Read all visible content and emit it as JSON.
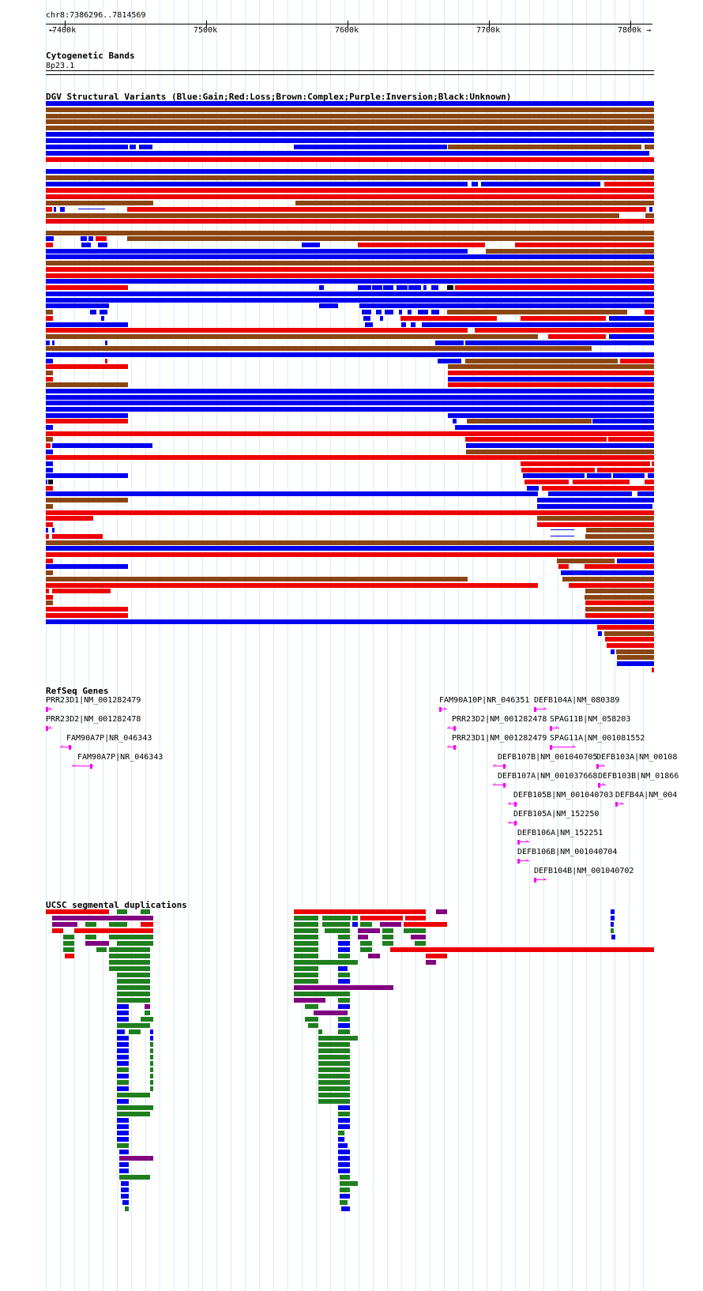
{
  "locus": "chr8:7386296..7814569",
  "ruler": {
    "ticks": [
      "7400k",
      "7500k",
      "7600k",
      "7700k",
      "7800k"
    ]
  },
  "cytoband": {
    "title": "Cytogenetic Bands",
    "band": "8p23.1"
  },
  "dgv": {
    "title": "DGV Structural Variants (Blue:Gain;Red:Loss;Brown:Complex;Purple:Inversion;Black:Unknown)",
    "colors": {
      "gain": "#0000ee",
      "loss": "#ee0000",
      "complex": "#8b4513",
      "inversion": "#800080",
      "unknown": "#000000"
    }
  },
  "refseq": {
    "title": "RefSeq Genes",
    "genes": [
      {
        "label": "PRR23D1|NM_001282479",
        "strand": "+"
      },
      {
        "label": "PRR23D2|NM_001282478",
        "strand": "+"
      },
      {
        "label": "FAM90A7P|NR_046343",
        "strand": "-"
      },
      {
        "label": "FAM90A7P|NR_046343",
        "strand": "-"
      },
      {
        "label": "FAM90A10P|NR_046351",
        "strand": "+"
      },
      {
        "label": "DEFB104A|NM_080389",
        "strand": "+"
      },
      {
        "label": "PRR23D2|NM_001282478",
        "strand": "-"
      },
      {
        "label": "SPAG11B|NM_058203",
        "strand": "+"
      },
      {
        "label": "PRR23D1|NM_001282479",
        "strand": "-"
      },
      {
        "label": "SPAG11A|NM_001081552",
        "strand": "+"
      },
      {
        "label": "DEFB107B|NM_001040705",
        "strand": "-"
      },
      {
        "label": "DEFB103A|NM_00108",
        "strand": "+"
      },
      {
        "label": "DEFB107A|NM_001037668",
        "strand": "-"
      },
      {
        "label": "DEFB103B|NM_01866",
        "strand": "+"
      },
      {
        "label": "DEFB105B|NM_001040703",
        "strand": "-"
      },
      {
        "label": "DEFB4A|NM_004",
        "strand": "+"
      },
      {
        "label": "DEFB105A|NM_152250",
        "strand": "-"
      },
      {
        "label": "DEFB106A|NM_152251",
        "strand": "+"
      },
      {
        "label": "DEFB106B|NM_001040704",
        "strand": "+"
      },
      {
        "label": "DEFB104B|NM_001040702",
        "strand": "+"
      }
    ]
  },
  "segdup": {
    "title": "UCSC segmental duplications",
    "colors": {
      "red": "#ee0000",
      "purple": "#800080",
      "green": "#1f7f1f",
      "blue": "#0000ee"
    }
  }
}
